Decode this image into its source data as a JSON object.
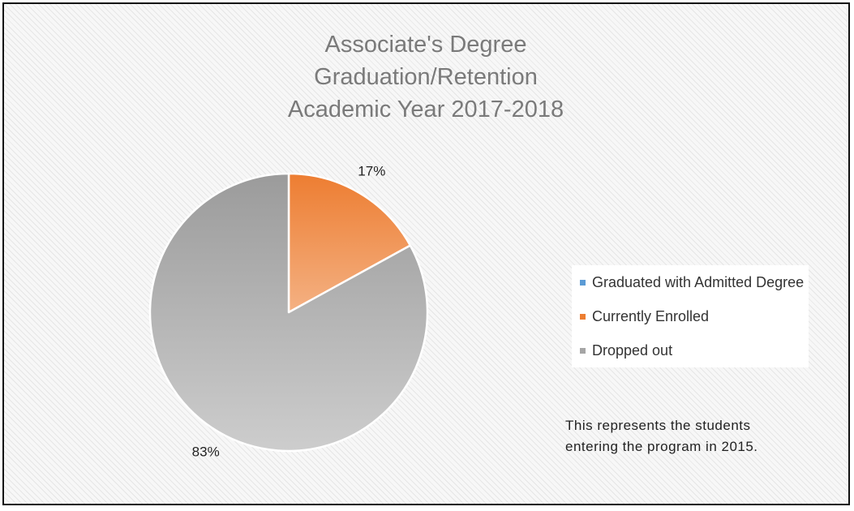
{
  "chart_data": {
    "type": "pie",
    "title_lines": [
      "Associate's Degree",
      "Graduation/Retention",
      "Academic Year 2017-2018"
    ],
    "categories": [
      "Graduated with Admitted Degree",
      "Currently Enrolled",
      "Dropped out"
    ],
    "values": [
      0,
      17,
      83
    ],
    "data_labels": [
      "",
      "17%",
      "83%"
    ],
    "colors": [
      "#5b9bd5",
      "#ed7d31",
      "#a5a5a5"
    ],
    "legend_position": "right"
  },
  "note_lines": [
    "This represents the students",
    "entering the program in 2015."
  ]
}
